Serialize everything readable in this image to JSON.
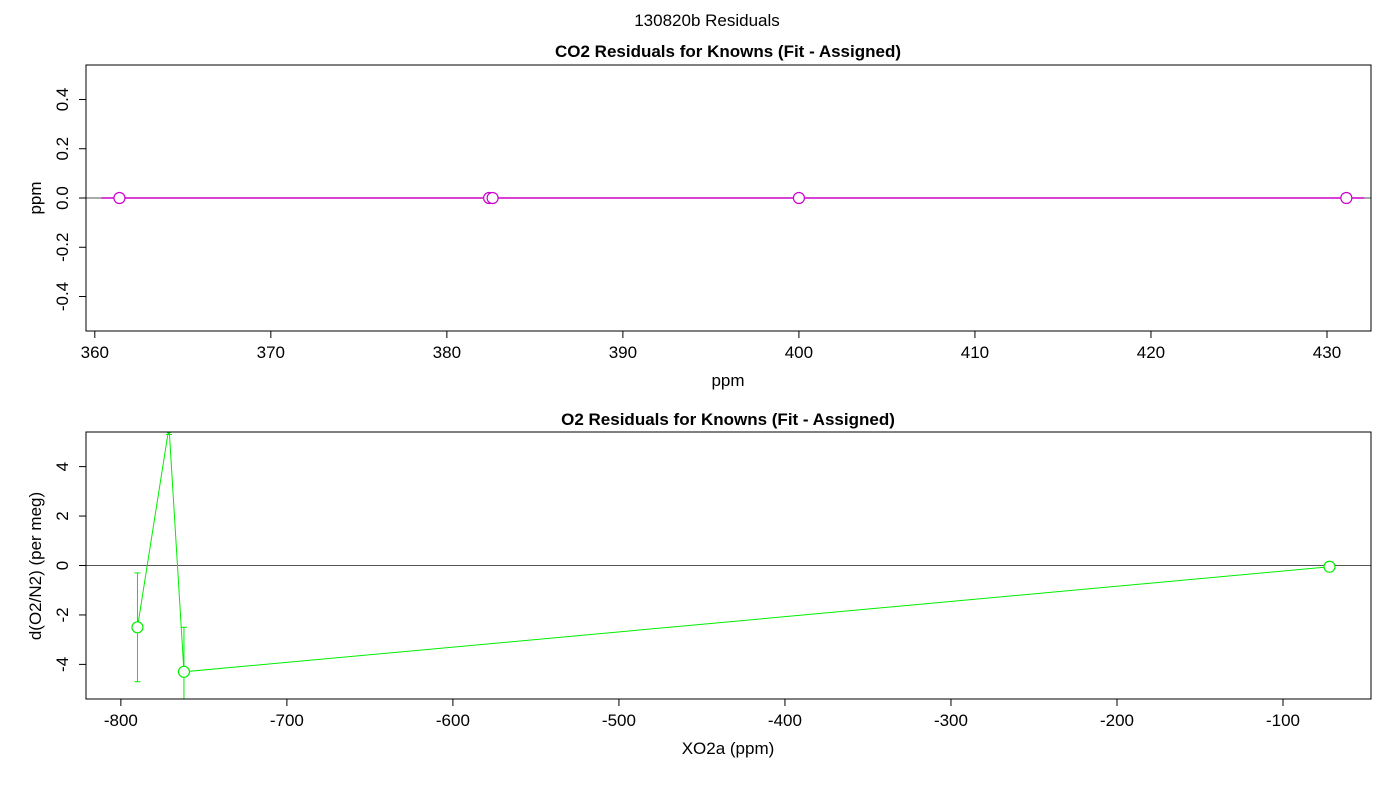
{
  "page_title": "130820b  Residuals",
  "colors": {
    "co2_series": "#cc00cc",
    "o2_series": "#00ee00",
    "axis": "#000000",
    "zero_line": "#555555"
  },
  "chart_data": [
    {
      "type": "scatter",
      "title": "CO2 Residuals for Knowns (Fit - Assigned)",
      "xlabel": "ppm",
      "ylabel": "ppm",
      "xlim": [
        359.5,
        432.5
      ],
      "ylim": [
        -0.54,
        0.54
      ],
      "xticks": [
        360,
        370,
        380,
        390,
        400,
        410,
        420,
        430
      ],
      "yticks": [
        -0.4,
        -0.2,
        0.0,
        0.2,
        0.4
      ],
      "xtick_labels": [
        "360",
        "370",
        "380",
        "390",
        "400",
        "410",
        "420",
        "430"
      ],
      "ytick_labels": [
        "-0.4",
        "-0.2",
        "0.0",
        "0.2",
        "0.4"
      ],
      "zero_line": true,
      "series": [
        {
          "x": [
            361.4,
            382.4,
            382.6,
            400.0,
            431.1
          ],
          "y": [
            0,
            0,
            0,
            0,
            0
          ]
        }
      ]
    },
    {
      "type": "line",
      "title": "O2 Residuals for Knowns (Fit - Assigned)",
      "xlabel": "XO2a (ppm)",
      "ylabel": "d(O2/N2) (per meg)",
      "xlim": [
        -821,
        -47
      ],
      "ylim": [
        -5.4,
        5.4
      ],
      "xticks": [
        -800,
        -700,
        -600,
        -500,
        -400,
        -300,
        -200,
        -100
      ],
      "yticks": [
        -4,
        -2,
        0,
        2,
        4
      ],
      "xtick_labels": [
        "-800",
        "-700",
        "-600",
        "-500",
        "-400",
        "-300",
        "-200",
        "-100"
      ],
      "ytick_labels": [
        "-4",
        "-2",
        "0",
        "2",
        "4"
      ],
      "zero_line": true,
      "series": [
        {
          "x": [
            -790,
            -771,
            -762,
            -72
          ],
          "y": [
            -2.5,
            5.6,
            -4.3,
            -0.05
          ],
          "err": [
            2.2,
            0.3,
            1.8,
            0.0
          ]
        }
      ]
    }
  ]
}
